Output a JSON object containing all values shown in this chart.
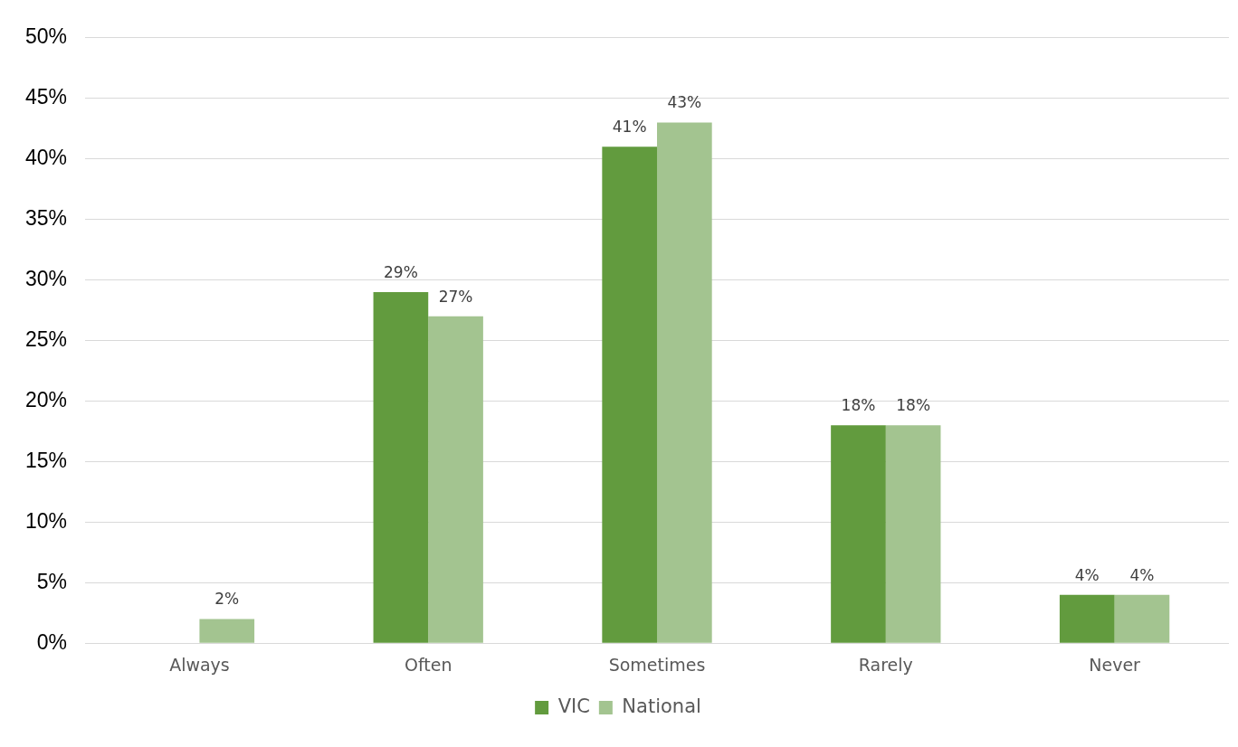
{
  "chart_data": {
    "type": "bar",
    "categories": [
      "Always",
      "Often",
      "Sometimes",
      "Rarely",
      "Never"
    ],
    "series": [
      {
        "name": "VIC",
        "color": "#629b3e",
        "values": [
          null,
          29,
          41,
          18,
          4
        ],
        "value_labels": [
          null,
          "29%",
          "41%",
          "18%",
          "4%"
        ]
      },
      {
        "name": "National",
        "color": "#a3c490",
        "values": [
          2,
          27,
          43,
          18,
          4
        ],
        "value_labels": [
          "2%",
          "27%",
          "43%",
          "18%",
          "4%"
        ]
      }
    ],
    "ylim": [
      0,
      50
    ],
    "yticks": [
      {
        "value": 0,
        "label": "0%"
      },
      {
        "value": 5,
        "label": "5%"
      },
      {
        "value": 10,
        "label": "10%"
      },
      {
        "value": 15,
        "label": "15%"
      },
      {
        "value": 20,
        "label": "20%"
      },
      {
        "value": 25,
        "label": "25%"
      },
      {
        "value": 30,
        "label": "30%"
      },
      {
        "value": 35,
        "label": "35%"
      },
      {
        "value": 40,
        "label": "40%"
      },
      {
        "value": 45,
        "label": "45%"
      },
      {
        "value": 50,
        "label": "50%"
      }
    ],
    "grid": "y",
    "legend": "bottom"
  }
}
